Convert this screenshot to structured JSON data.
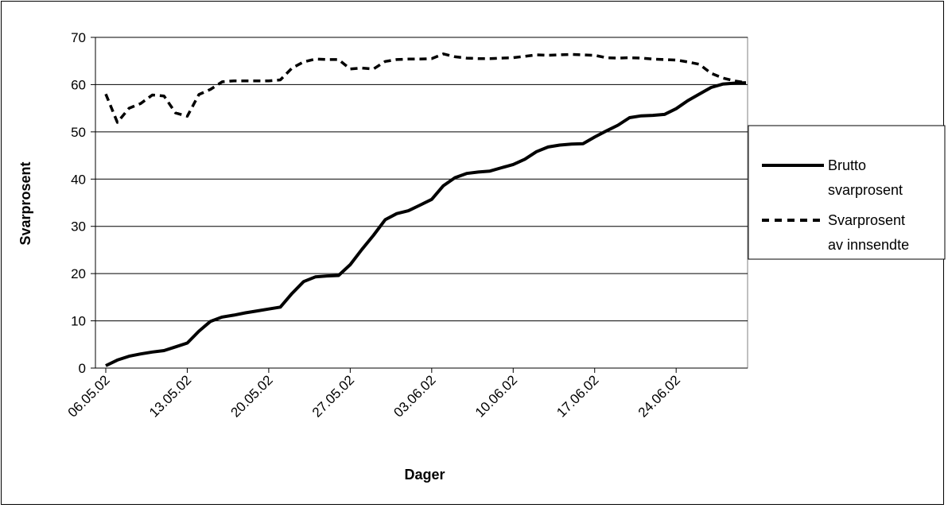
{
  "chart_data": {
    "type": "line",
    "xlabel": "Dager",
    "ylabel": "Svarprosent",
    "ylim": [
      0,
      70
    ],
    "yticks": [
      "0",
      "10",
      "20",
      "30",
      "40",
      "50",
      "60",
      "70"
    ],
    "x_tick_labels": [
      "06.05.02",
      "13.05.02",
      "20.05.02",
      "27.05.02",
      "03.06.02",
      "10.06.02",
      "17.06.02",
      "24.06.02"
    ],
    "x_ticks": [
      "2002-05-06",
      "2002-05-13",
      "2002-05-20",
      "2002-05-27",
      "2002-06-03",
      "2002-06-10",
      "2002-06-17",
      "2002-06-24"
    ],
    "x_range": [
      "2002-05-06",
      "2002-06-30"
    ],
    "grid": "horizontal",
    "legend_position": "right",
    "x": [
      "2002-05-06",
      "2002-05-07",
      "2002-05-08",
      "2002-05-09",
      "2002-05-10",
      "2002-05-11",
      "2002-05-12",
      "2002-05-13",
      "2002-05-14",
      "2002-05-15",
      "2002-05-16",
      "2002-05-17",
      "2002-05-18",
      "2002-05-19",
      "2002-05-20",
      "2002-05-21",
      "2002-05-22",
      "2002-05-23",
      "2002-05-24",
      "2002-05-25",
      "2002-05-26",
      "2002-05-27",
      "2002-05-28",
      "2002-05-29",
      "2002-05-30",
      "2002-05-31",
      "2002-06-01",
      "2002-06-02",
      "2002-06-03",
      "2002-06-04",
      "2002-06-05",
      "2002-06-06",
      "2002-06-07",
      "2002-06-08",
      "2002-06-09",
      "2002-06-10",
      "2002-06-11",
      "2002-06-12",
      "2002-06-13",
      "2002-06-14",
      "2002-06-15",
      "2002-06-16",
      "2002-06-17",
      "2002-06-18",
      "2002-06-19",
      "2002-06-20",
      "2002-06-21",
      "2002-06-22",
      "2002-06-23",
      "2002-06-24",
      "2002-06-25",
      "2002-06-26",
      "2002-06-27",
      "2002-06-28",
      "2002-06-29",
      "2002-06-30"
    ],
    "series": [
      {
        "name": "Brutto svarprosent",
        "style": "solid",
        "color": "#000000",
        "values": [
          0.5,
          1.7,
          2.5,
          3.0,
          3.4,
          3.7,
          4.5,
          5.3,
          7.8,
          9.9,
          10.8,
          11.2,
          11.7,
          12.1,
          12.5,
          12.9,
          15.8,
          18.3,
          19.3,
          19.5,
          19.6,
          21.9,
          25.1,
          28.1,
          31.4,
          32.7,
          33.3,
          34.5,
          35.7,
          38.6,
          40.3,
          41.2,
          41.5,
          41.7,
          42.4,
          43.1,
          44.2,
          45.8,
          46.8,
          47.2,
          47.4,
          47.5,
          48.9,
          50.2,
          51.4,
          53.0,
          53.4,
          53.5,
          53.7,
          54.9,
          56.6,
          58.0,
          59.4,
          60.1,
          60.3,
          60.4
        ]
      },
      {
        "name": "Svarprosent av innsendte",
        "style": "dashed",
        "color": "#000000",
        "values": [
          58.0,
          52.0,
          55.0,
          56.0,
          57.8,
          57.6,
          54.0,
          53.3,
          57.9,
          59.0,
          60.6,
          60.8,
          60.8,
          60.8,
          60.8,
          61.0,
          63.5,
          64.8,
          65.4,
          65.3,
          65.3,
          63.3,
          63.5,
          63.3,
          64.9,
          65.3,
          65.4,
          65.4,
          65.5,
          66.5,
          65.9,
          65.6,
          65.5,
          65.5,
          65.6,
          65.7,
          66.0,
          66.3,
          66.2,
          66.3,
          66.4,
          66.3,
          66.2,
          65.7,
          65.6,
          65.7,
          65.6,
          65.4,
          65.3,
          65.2,
          64.8,
          64.3,
          62.4,
          61.4,
          60.8,
          60.4
        ]
      }
    ],
    "legend": [
      "Brutto",
      "svarprosent",
      "Svarprosent",
      "av innsendte"
    ]
  }
}
